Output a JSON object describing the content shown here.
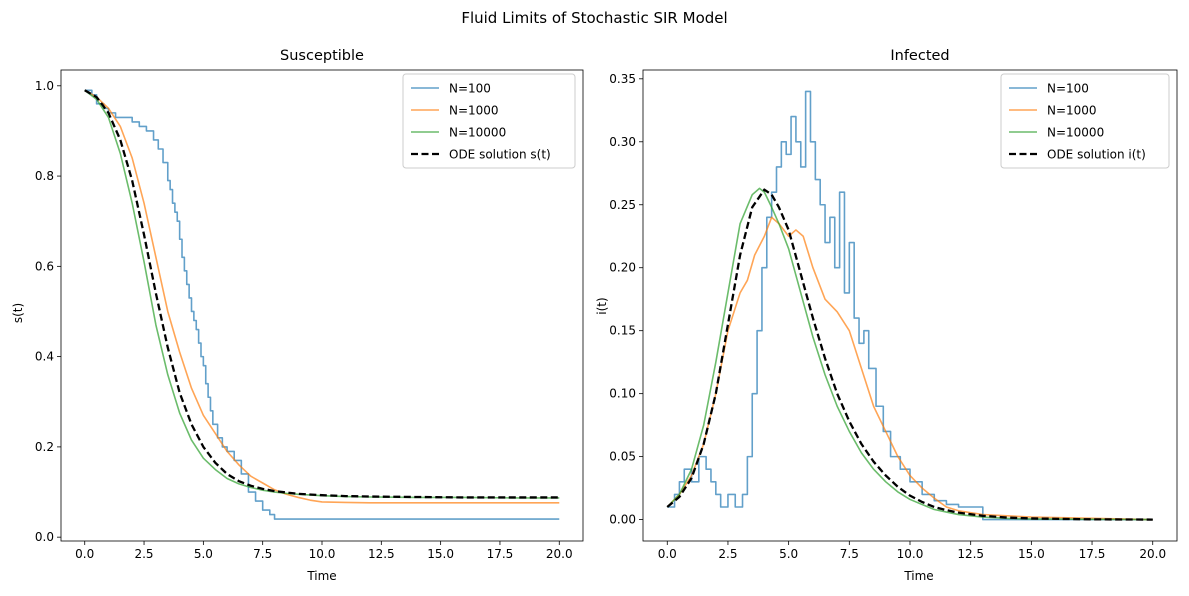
{
  "figure": {
    "suptitle": "Fluid Limits of Stochastic SIR Model"
  },
  "colors": {
    "N100": "#1f77b4",
    "N1000": "#ff7f0e",
    "N10000": "#2ca02c",
    "ode": "#000000"
  },
  "chart_data": [
    {
      "type": "line",
      "title": "Susceptible",
      "xlabel": "Time",
      "ylabel": "s(t)",
      "xlim": [
        -1.0,
        21.0
      ],
      "ylim": [
        -0.0085,
        1.035
      ],
      "xticks": [
        0.0,
        2.5,
        5.0,
        7.5,
        10.0,
        12.5,
        15.0,
        17.5,
        20.0
      ],
      "xtick_labels": [
        "0.0",
        "2.5",
        "5.0",
        "7.5",
        "10.0",
        "12.5",
        "15.0",
        "17.5",
        "20.0"
      ],
      "yticks": [
        0.0,
        0.2,
        0.4,
        0.6,
        0.8,
        1.0
      ],
      "ytick_labels": [
        "0.0",
        "0.2",
        "0.4",
        "0.6",
        "0.8",
        "1.0"
      ],
      "legend_position": "top-right",
      "series": [
        {
          "name": "N=100",
          "color": "#1f77b4",
          "style": "step",
          "x": [
            0.0,
            0.3,
            0.5,
            0.8,
            1.0,
            1.3,
            1.6,
            2.0,
            2.3,
            2.6,
            2.9,
            3.1,
            3.3,
            3.5,
            3.6,
            3.7,
            3.8,
            3.9,
            4.0,
            4.1,
            4.2,
            4.3,
            4.4,
            4.5,
            4.6,
            4.7,
            4.8,
            4.9,
            5.0,
            5.1,
            5.2,
            5.3,
            5.4,
            5.6,
            5.8,
            6.0,
            6.3,
            6.6,
            6.9,
            7.2,
            7.5,
            7.8,
            8.0,
            20.0
          ],
          "y": [
            0.99,
            0.98,
            0.96,
            0.95,
            0.94,
            0.93,
            0.93,
            0.92,
            0.91,
            0.9,
            0.88,
            0.86,
            0.83,
            0.79,
            0.77,
            0.74,
            0.72,
            0.7,
            0.66,
            0.62,
            0.59,
            0.56,
            0.53,
            0.5,
            0.48,
            0.46,
            0.43,
            0.4,
            0.38,
            0.34,
            0.31,
            0.28,
            0.25,
            0.22,
            0.2,
            0.19,
            0.17,
            0.14,
            0.1,
            0.08,
            0.06,
            0.05,
            0.04,
            0.04
          ]
        },
        {
          "name": "N=1000",
          "color": "#ff7f0e",
          "style": "line",
          "x": [
            0.0,
            0.5,
            1.0,
            1.5,
            2.0,
            2.5,
            3.0,
            3.5,
            4.0,
            4.5,
            5.0,
            5.5,
            6.0,
            6.5,
            7.0,
            7.5,
            8.0,
            8.5,
            9.0,
            9.5,
            10.0,
            11.0,
            12.0,
            14.0,
            16.0,
            18.0,
            20.0
          ],
          "y": [
            0.99,
            0.975,
            0.95,
            0.91,
            0.84,
            0.74,
            0.62,
            0.5,
            0.41,
            0.33,
            0.27,
            0.23,
            0.19,
            0.16,
            0.135,
            0.12,
            0.105,
            0.095,
            0.088,
            0.082,
            0.078,
            0.077,
            0.076,
            0.076,
            0.076,
            0.076,
            0.076
          ]
        },
        {
          "name": "N=10000",
          "color": "#2ca02c",
          "style": "line",
          "x": [
            0.0,
            0.5,
            1.0,
            1.5,
            2.0,
            2.5,
            3.0,
            3.5,
            4.0,
            4.5,
            5.0,
            5.5,
            6.0,
            6.5,
            7.0,
            7.5,
            8.0,
            8.5,
            9.0,
            10.0,
            11.0,
            12.0,
            14.0,
            16.0,
            18.0,
            20.0
          ],
          "y": [
            0.99,
            0.97,
            0.93,
            0.85,
            0.74,
            0.61,
            0.47,
            0.36,
            0.275,
            0.215,
            0.175,
            0.15,
            0.13,
            0.118,
            0.11,
            0.104,
            0.1,
            0.097,
            0.095,
            0.092,
            0.09,
            0.089,
            0.088,
            0.088,
            0.087,
            0.087
          ]
        },
        {
          "name": "ODE solution s(t)",
          "color": "#000000",
          "style": "dashed",
          "x": [
            0.0,
            0.5,
            1.0,
            1.5,
            2.0,
            2.5,
            3.0,
            3.5,
            4.0,
            4.5,
            5.0,
            5.5,
            6.0,
            6.5,
            7.0,
            7.5,
            8.0,
            8.5,
            9.0,
            10.0,
            11.0,
            12.0,
            14.0,
            16.0,
            18.0,
            20.0
          ],
          "y": [
            0.99,
            0.975,
            0.94,
            0.88,
            0.79,
            0.67,
            0.54,
            0.42,
            0.32,
            0.25,
            0.2,
            0.165,
            0.14,
            0.124,
            0.114,
            0.107,
            0.102,
            0.099,
            0.096,
            0.093,
            0.091,
            0.09,
            0.089,
            0.088,
            0.088,
            0.088
          ]
        }
      ]
    },
    {
      "type": "line",
      "title": "Infected",
      "xlabel": "Time",
      "ylabel": "i(t)",
      "xlim": [
        -1.0,
        21.0
      ],
      "ylim": [
        -0.017,
        0.357
      ],
      "xticks": [
        0.0,
        2.5,
        5.0,
        7.5,
        10.0,
        12.5,
        15.0,
        17.5,
        20.0
      ],
      "xtick_labels": [
        "0.0",
        "2.5",
        "5.0",
        "7.5",
        "10.0",
        "12.5",
        "15.0",
        "17.5",
        "20.0"
      ],
      "yticks": [
        0.0,
        0.05,
        0.1,
        0.15,
        0.2,
        0.25,
        0.3,
        0.35
      ],
      "ytick_labels": [
        "0.00",
        "0.05",
        "0.10",
        "0.15",
        "0.20",
        "0.25",
        "0.30",
        "0.35"
      ],
      "legend_position": "top-right",
      "series": [
        {
          "name": "N=100",
          "color": "#1f77b4",
          "style": "step",
          "x": [
            0.0,
            0.3,
            0.5,
            0.7,
            1.0,
            1.3,
            1.6,
            1.8,
            2.0,
            2.2,
            2.5,
            2.8,
            3.1,
            3.3,
            3.5,
            3.7,
            3.9,
            4.1,
            4.3,
            4.5,
            4.7,
            4.9,
            5.1,
            5.3,
            5.5,
            5.7,
            5.9,
            6.1,
            6.3,
            6.5,
            6.7,
            6.9,
            7.1,
            7.3,
            7.5,
            7.7,
            7.9,
            8.1,
            8.3,
            8.6,
            8.9,
            9.2,
            9.6,
            10.0,
            10.5,
            11.0,
            11.5,
            12.0,
            13.0,
            15.0,
            17.5,
            20.0
          ],
          "y": [
            0.01,
            0.02,
            0.03,
            0.04,
            0.03,
            0.05,
            0.04,
            0.03,
            0.02,
            0.01,
            0.02,
            0.01,
            0.02,
            0.05,
            0.1,
            0.15,
            0.2,
            0.24,
            0.26,
            0.28,
            0.3,
            0.29,
            0.32,
            0.3,
            0.28,
            0.34,
            0.3,
            0.27,
            0.25,
            0.22,
            0.24,
            0.2,
            0.26,
            0.18,
            0.22,
            0.16,
            0.14,
            0.15,
            0.12,
            0.09,
            0.07,
            0.05,
            0.04,
            0.03,
            0.02,
            0.015,
            0.012,
            0.01,
            0.0,
            0.0,
            0.0,
            0.0
          ]
        },
        {
          "name": "N=1000",
          "color": "#ff7f0e",
          "style": "line",
          "x": [
            0.0,
            0.5,
            1.0,
            1.5,
            2.0,
            2.5,
            3.0,
            3.3,
            3.6,
            4.0,
            4.3,
            4.6,
            5.0,
            5.3,
            5.6,
            6.0,
            6.5,
            7.0,
            7.5,
            8.0,
            8.5,
            9.0,
            9.5,
            10.0,
            10.5,
            11.0,
            11.5,
            12.0,
            13.0,
            15.0,
            17.5,
            20.0
          ],
          "y": [
            0.01,
            0.02,
            0.035,
            0.06,
            0.1,
            0.15,
            0.18,
            0.19,
            0.21,
            0.225,
            0.24,
            0.235,
            0.225,
            0.23,
            0.225,
            0.2,
            0.175,
            0.165,
            0.15,
            0.12,
            0.09,
            0.07,
            0.05,
            0.035,
            0.025,
            0.017,
            0.01,
            0.007,
            0.004,
            0.002,
            0.001,
            0.0
          ]
        },
        {
          "name": "N=10000",
          "color": "#2ca02c",
          "style": "line",
          "x": [
            0.0,
            0.5,
            1.0,
            1.5,
            2.0,
            2.5,
            3.0,
            3.5,
            3.8,
            4.0,
            4.3,
            4.6,
            5.0,
            5.5,
            6.0,
            6.5,
            7.0,
            7.5,
            8.0,
            8.5,
            9.0,
            9.5,
            10.0,
            10.5,
            11.0,
            11.5,
            12.0,
            13.0,
            14.0,
            15.0,
            17.5,
            20.0
          ],
          "y": [
            0.01,
            0.02,
            0.04,
            0.075,
            0.125,
            0.18,
            0.235,
            0.258,
            0.263,
            0.26,
            0.248,
            0.235,
            0.215,
            0.18,
            0.145,
            0.115,
            0.09,
            0.07,
            0.053,
            0.04,
            0.03,
            0.022,
            0.016,
            0.012,
            0.008,
            0.006,
            0.004,
            0.002,
            0.001,
            0.0005,
            0.0002,
            0.0
          ]
        },
        {
          "name": "ODE solution i(t)",
          "color": "#000000",
          "style": "dashed",
          "x": [
            0.0,
            0.5,
            1.0,
            1.5,
            2.0,
            2.5,
            3.0,
            3.5,
            4.0,
            4.3,
            4.6,
            5.0,
            5.5,
            6.0,
            6.5,
            7.0,
            7.5,
            8.0,
            8.5,
            9.0,
            9.5,
            10.0,
            10.5,
            11.0,
            11.5,
            12.0,
            13.0,
            14.0,
            15.0,
            17.5,
            20.0
          ],
          "y": [
            0.01,
            0.018,
            0.033,
            0.06,
            0.1,
            0.155,
            0.21,
            0.248,
            0.262,
            0.258,
            0.248,
            0.23,
            0.195,
            0.16,
            0.128,
            0.1,
            0.078,
            0.06,
            0.046,
            0.035,
            0.026,
            0.019,
            0.014,
            0.01,
            0.0075,
            0.0055,
            0.003,
            0.0016,
            0.0009,
            0.0002,
            0.0
          ]
        }
      ]
    }
  ]
}
